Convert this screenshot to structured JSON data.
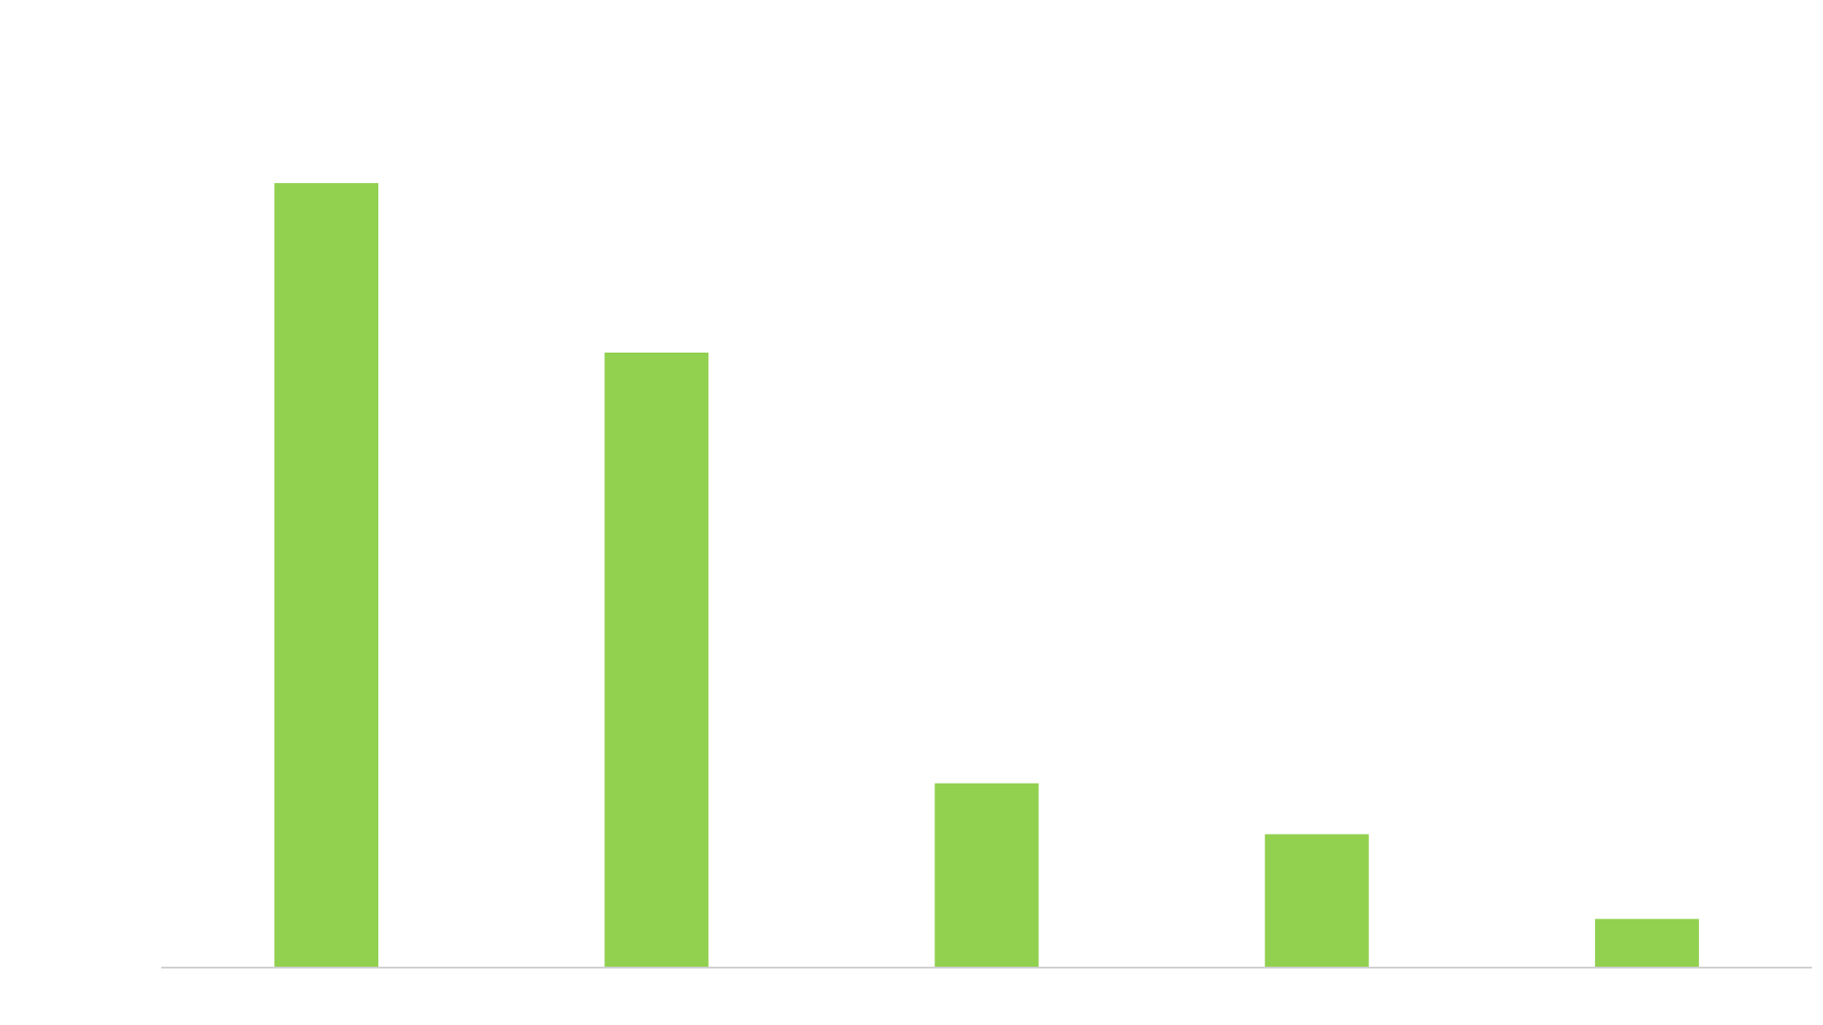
{
  "chart_data": {
    "type": "bar",
    "categories": [
      "",
      "",
      "",
      "",
      ""
    ],
    "values": [
      100,
      78.4,
      23.5,
      17,
      6.2
    ],
    "ylim": [
      0,
      100
    ],
    "grid": false,
    "legend": "none",
    "title": "",
    "xlabel": "",
    "ylabel": ""
  },
  "colors": {
    "bar": "#92d050",
    "axis": "#d0d0d0",
    "background": "#ffffff"
  }
}
